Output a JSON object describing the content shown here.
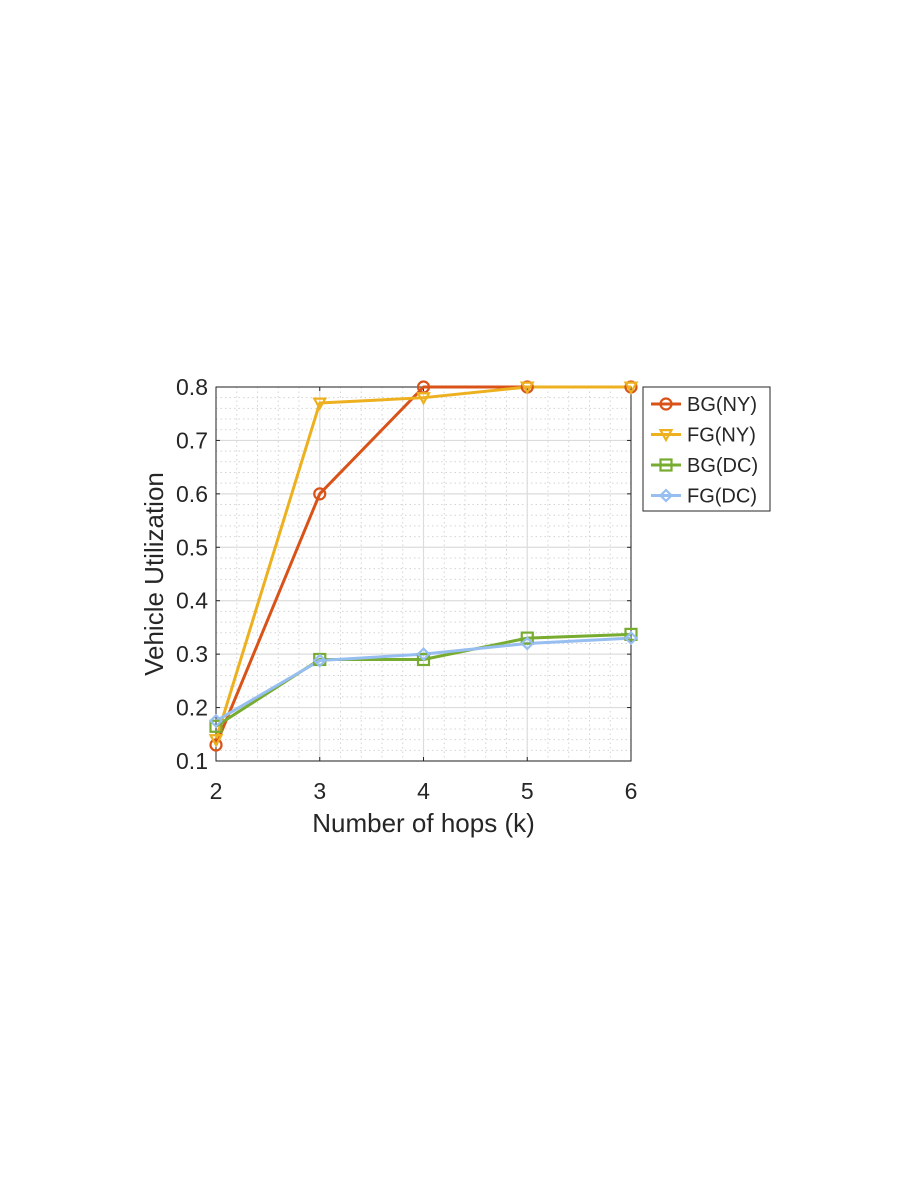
{
  "chart_data": {
    "type": "line",
    "title": "",
    "xlabel": "Number of hops (k)",
    "ylabel": "Vehicle Utilization",
    "x": [
      2,
      3,
      4,
      5,
      6
    ],
    "xticks": [
      "2",
      "3",
      "4",
      "5",
      "6"
    ],
    "yticks": [
      "0.1",
      "0.2",
      "0.3",
      "0.4",
      "0.5",
      "0.6",
      "0.7",
      "0.8"
    ],
    "xlim": [
      2,
      6
    ],
    "ylim": [
      0.1,
      0.8
    ],
    "grid": "major and minor",
    "legend_position": "outside-top-right",
    "series": [
      {
        "name": "BG(NY)",
        "color": "#D95319",
        "marker": "circle",
        "values": [
          0.13,
          0.6,
          0.8,
          0.8,
          0.8
        ]
      },
      {
        "name": "FG(NY)",
        "color": "#EDB120",
        "marker": "triangle-down",
        "values": [
          0.14,
          0.77,
          0.78,
          0.8,
          0.8
        ]
      },
      {
        "name": "BG(DC)",
        "color": "#77AC30",
        "marker": "square",
        "values": [
          0.165,
          0.29,
          0.29,
          0.33,
          0.337
        ]
      },
      {
        "name": "FG(DC)",
        "color": "#97BEF0",
        "marker": "diamond",
        "values": [
          0.175,
          0.288,
          0.3,
          0.32,
          0.33
        ]
      }
    ]
  }
}
